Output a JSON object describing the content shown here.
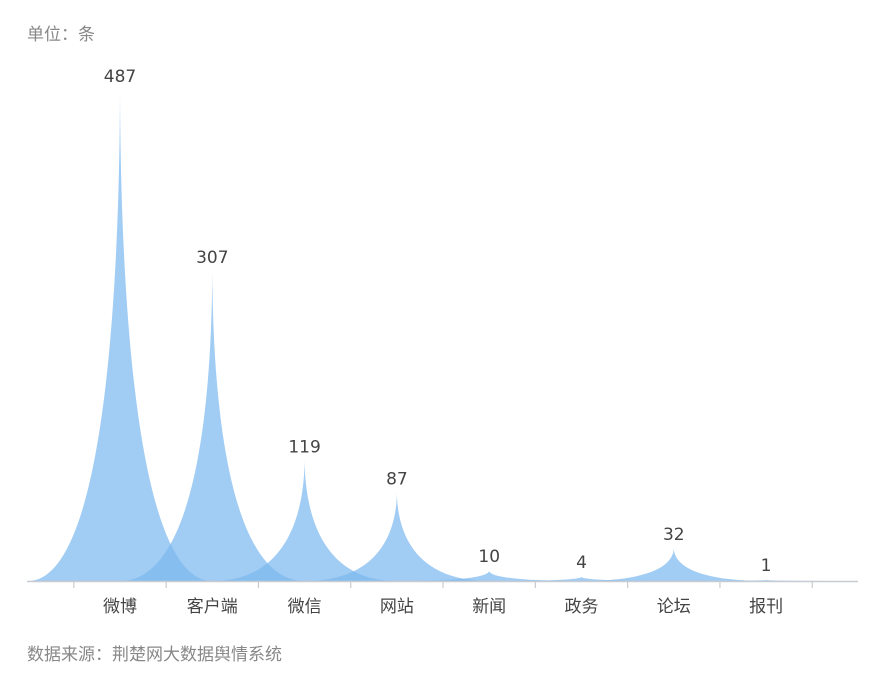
{
  "unit_label": "单位：条",
  "source_label": "数据来源：荆楚网大数据舆情系统",
  "colors": {
    "fill": "#7db9ef",
    "axis": "#c8ccd2",
    "text": "#444444",
    "muted": "#888888"
  },
  "chart_data": {
    "type": "bar",
    "title": "",
    "xlabel": "",
    "ylabel": "",
    "categories": [
      "微博",
      "客户端",
      "微信",
      "网站",
      "新闻",
      "政务",
      "论坛",
      "报刊"
    ],
    "values": [
      487,
      307,
      119,
      87,
      10,
      4,
      32,
      1
    ],
    "ylim": [
      0,
      487
    ],
    "grid": false,
    "legend": false
  }
}
